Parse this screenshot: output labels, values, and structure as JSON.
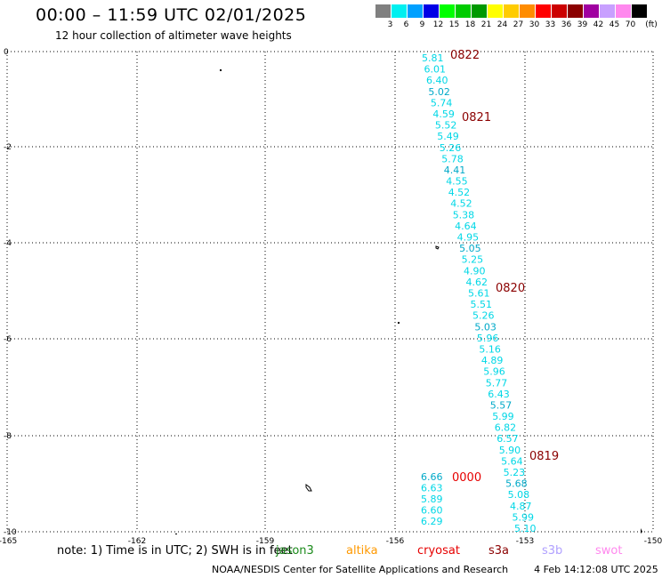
{
  "header": {
    "title": "00:00 – 11:59 UTC 02/01/2025",
    "subtitle": "12 hour collection of altimeter wave heights"
  },
  "legend": {
    "unit": "(ft)",
    "bins": [
      {
        "label": "3",
        "color": "#808080"
      },
      {
        "label": "6",
        "color": "#00f0f0"
      },
      {
        "label": "9",
        "color": "#00a0ff"
      },
      {
        "label": "12",
        "color": "#0000e6"
      },
      {
        "label": "15",
        "color": "#00ff00"
      },
      {
        "label": "18",
        "color": "#00cc00"
      },
      {
        "label": "21",
        "color": "#009900"
      },
      {
        "label": "24",
        "color": "#ffff00"
      },
      {
        "label": "27",
        "color": "#ffcc00"
      },
      {
        "label": "30",
        "color": "#ff8c00"
      },
      {
        "label": "33",
        "color": "#ff0000"
      },
      {
        "label": "36",
        "color": "#cc0000"
      },
      {
        "label": "39",
        "color": "#8b0000"
      },
      {
        "label": "42",
        "color": "#a000a0"
      },
      {
        "label": "45",
        "color": "#c8a0ff"
      },
      {
        "label": "70",
        "color": "#ff88ee"
      },
      {
        "label": "",
        "color": "#000000"
      }
    ]
  },
  "map": {
    "lon_labels": [
      "-165",
      "-162",
      "-159",
      "-156",
      "-153",
      "-150"
    ],
    "lat_labels": [
      "0",
      "-2",
      "-4",
      "-6",
      "-8",
      "-10"
    ],
    "track_main": {
      "heights": [
        "5.81",
        "6.01",
        "6.40",
        "5.02",
        "5.74",
        "4.59",
        "5.52",
        "5.49",
        "5.26",
        "5.78",
        "4.41",
        "4.55",
        "4.52",
        "4.52",
        "5.38",
        "4.64",
        "4.95",
        "5.05",
        "5.25",
        "4.90",
        "4.62",
        "5.61",
        "5.51",
        "5.26",
        "5.03",
        "5.96",
        "5.16",
        "4.89",
        "5.96",
        "5.77",
        "6.43",
        "5.57",
        "5.99",
        "6.82",
        "6.57",
        "5.90",
        "5.64",
        "5.23",
        "5.68",
        "5.08",
        "4.87",
        "5.99",
        "5.10"
      ],
      "times": [
        "0822",
        "0821",
        "0820",
        "0819"
      ]
    },
    "track_second": {
      "heights": [
        "6.66",
        "6.63",
        "5.89",
        "6.60",
        "6.29"
      ],
      "time": "0000"
    }
  },
  "notes": {
    "text": "note:  1) Time is in UTC;  2) SWH is in feet",
    "satellites": [
      {
        "name": "jason3",
        "color": "#1a8a1a"
      },
      {
        "name": "altika",
        "color": "#ff9900"
      },
      {
        "name": "cryosat",
        "color": "#e60000"
      },
      {
        "name": "s3a",
        "color": "#8b0000"
      },
      {
        "name": "s3b",
        "color": "#b0a0ff"
      },
      {
        "name": "swot",
        "color": "#ff88ee"
      }
    ]
  },
  "footer": {
    "credit": "NOAA/NESDIS Center for Satellite Applications and Research",
    "timestamp": "4 Feb 14:12:08 UTC 2025"
  }
}
